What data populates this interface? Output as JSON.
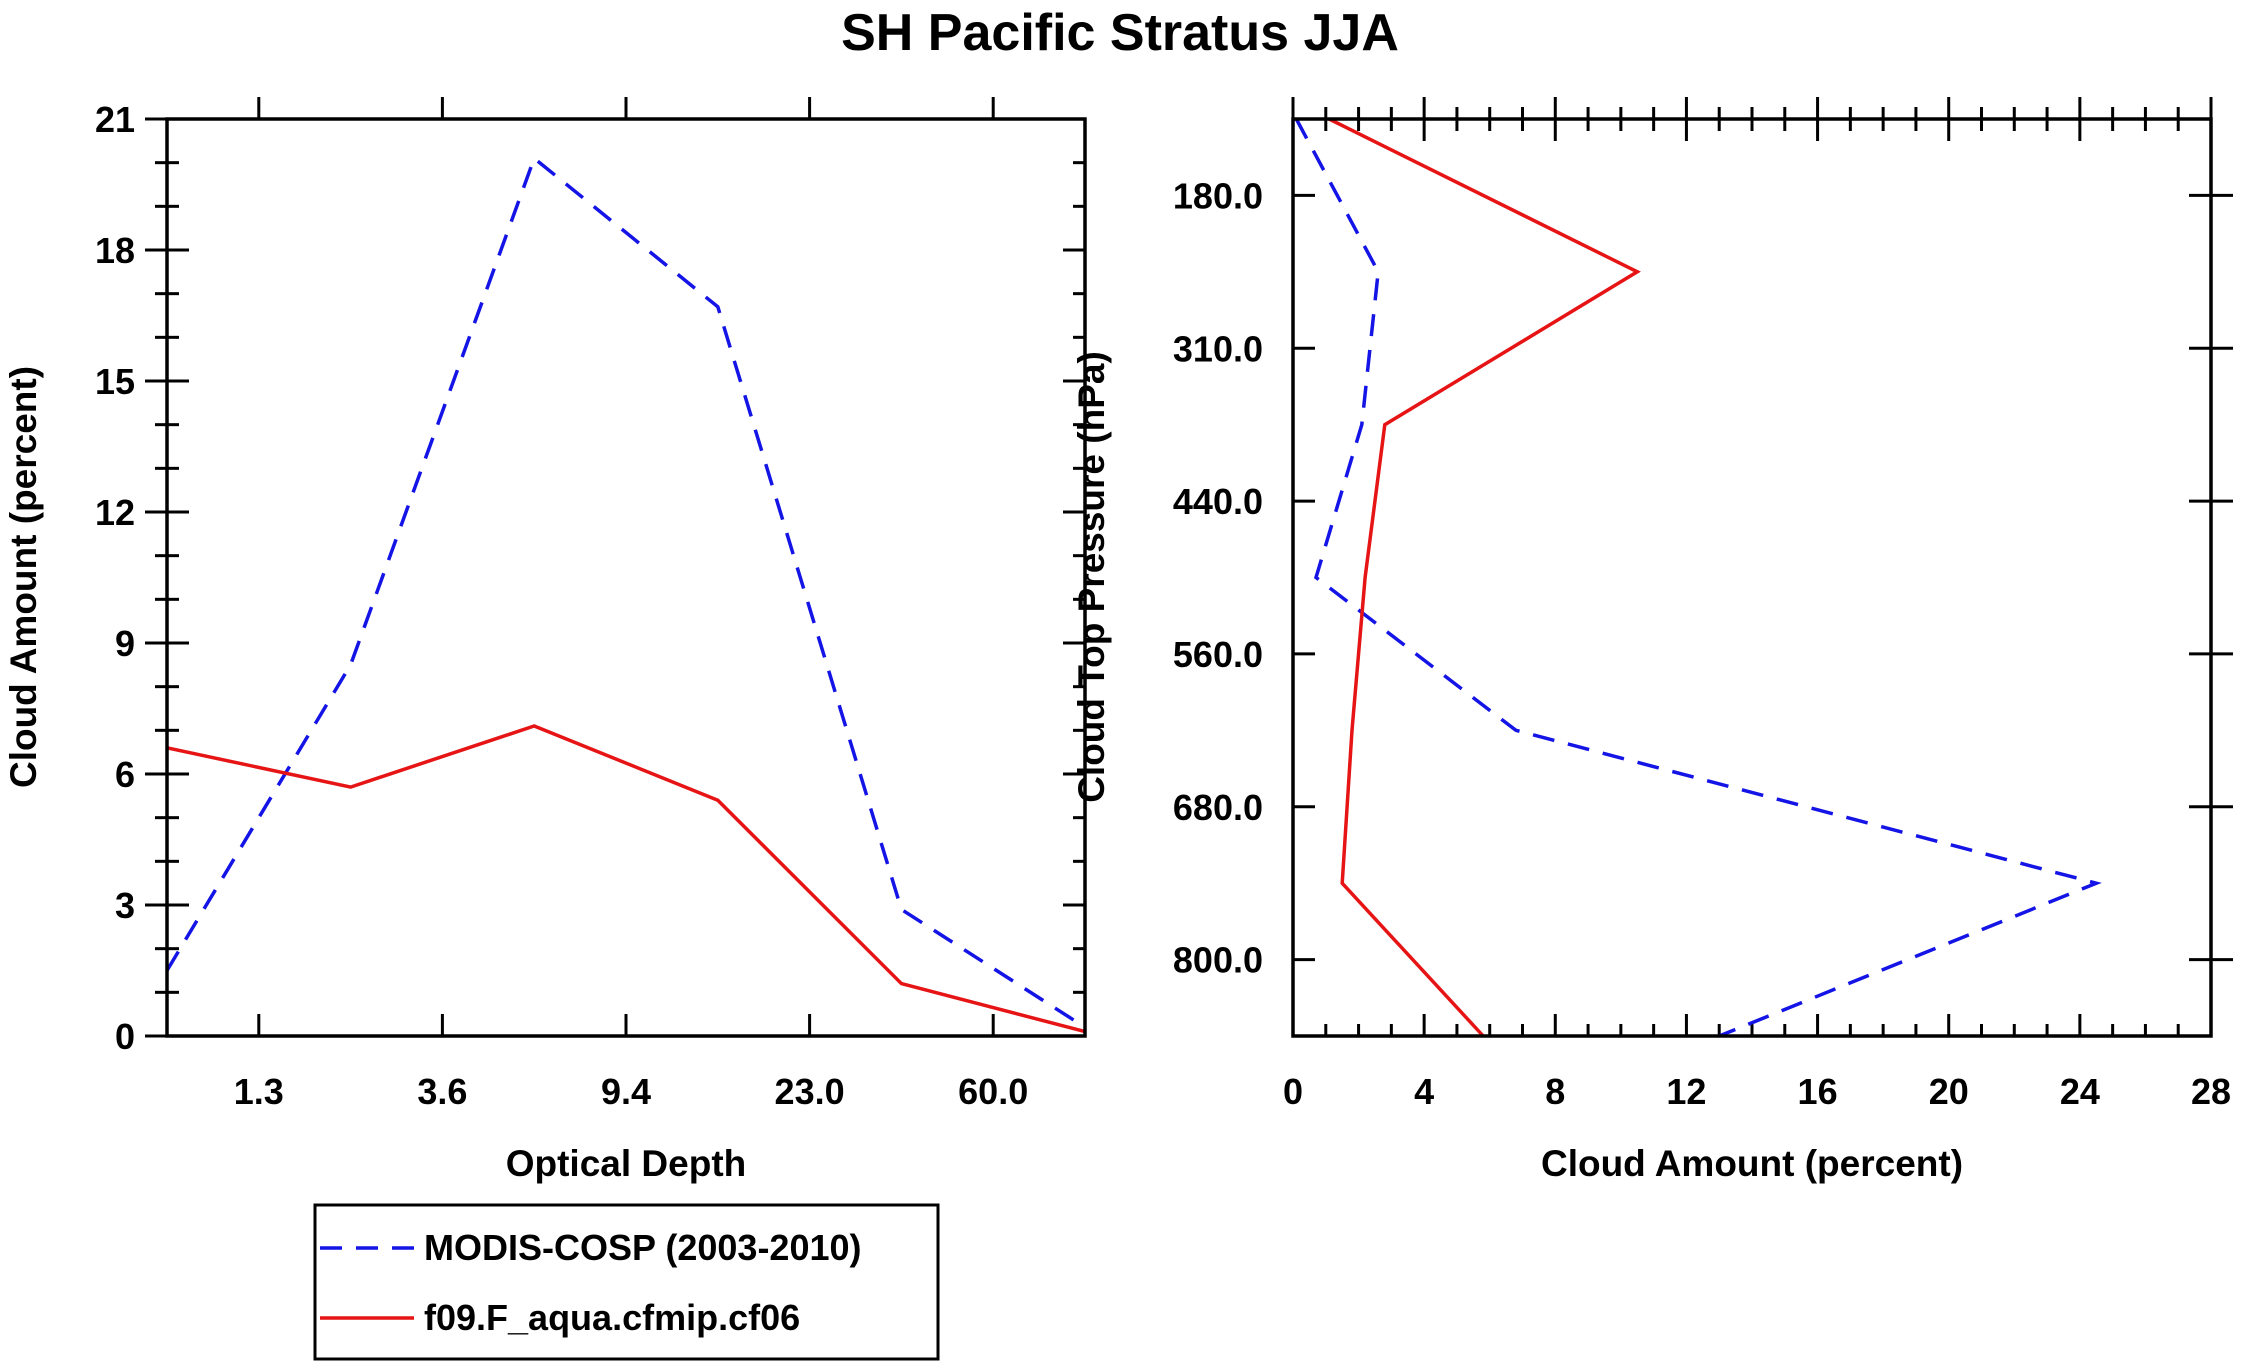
{
  "title": "SH Pacific Stratus JJA",
  "colors": {
    "modis": "#1414e6",
    "model": "#e61414"
  },
  "legend": [
    {
      "label": "MODIS-COSP (2003-2010)",
      "color": "#1414e6",
      "dash": true
    },
    {
      "label": "f09.F_aqua.cfmip.cf06",
      "color": "#e61414",
      "dash": false
    }
  ],
  "chart_data": [
    {
      "type": "line",
      "xlabel": "Optical Depth",
      "ylabel": "Cloud Amount (percent)",
      "xlim": [
        0,
        6
      ],
      "ylim": [
        0,
        21
      ],
      "x_tick_values": [
        0.6,
        1.8,
        3.0,
        4.2,
        5.4
      ],
      "x_tick_labels": [
        "1.3",
        "3.6",
        "9.4",
        "23.0",
        "60.0"
      ],
      "y_ticks": [
        0,
        3,
        6,
        9,
        12,
        15,
        18,
        21
      ],
      "y_tick_labels": [
        "0",
        "3",
        "6",
        "9",
        "12",
        "15",
        "18",
        "21"
      ],
      "x": [
        0,
        1.2,
        2.4,
        3.6,
        4.8,
        6.0
      ],
      "series": [
        {
          "name": "MODIS-COSP (2003-2010)",
          "values": [
            1.5,
            8.5,
            20.1,
            16.7,
            2.9,
            0.2
          ]
        },
        {
          "name": "f09.F_aqua.cfmip.cf06",
          "values": [
            6.6,
            5.7,
            7.1,
            5.4,
            1.2,
            0.1
          ]
        }
      ]
    },
    {
      "type": "line",
      "xlabel": "Cloud Amount (percent)",
      "ylabel": "Cloud Top Pressure (hPa)",
      "xlim": [
        0,
        28
      ],
      "ylim": [
        0,
        1200
      ],
      "y_reversed": true,
      "x_ticks": [
        0,
        4,
        8,
        12,
        16,
        20,
        24,
        28
      ],
      "x_tick_labels": [
        "0",
        "4",
        "8",
        "12",
        "16",
        "20",
        "24",
        "28"
      ],
      "y_tick_values": [
        100,
        300,
        500,
        700,
        900,
        1100
      ],
      "y_tick_labels": [
        "180.0",
        "310.0",
        "440.0",
        "560.0",
        "680.0",
        "800.0"
      ],
      "y": [
        0,
        200,
        400,
        600,
        800,
        1000,
        1200
      ],
      "series": [
        {
          "name": "MODIS-COSP (2003-2010)",
          "values": [
            0.1,
            2.6,
            2.1,
            0.7,
            6.8,
            24.5,
            13.0
          ]
        },
        {
          "name": "f09.F_aqua.cfmip.cf06",
          "values": [
            1.1,
            10.5,
            2.8,
            2.2,
            1.8,
            1.5,
            5.8
          ]
        }
      ]
    }
  ]
}
